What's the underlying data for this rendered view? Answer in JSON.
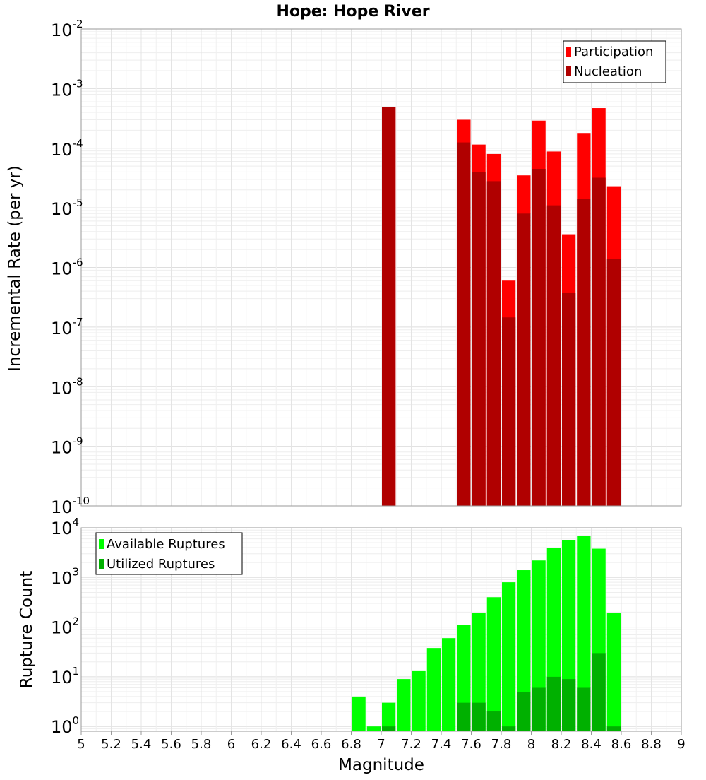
{
  "chart_data": [
    {
      "type": "bar",
      "title": "Hope: Hope River",
      "xlabel": "",
      "ylabel": "Incremental Rate (per yr)",
      "y_scale": "log",
      "ylim": [
        1e-10,
        0.01
      ],
      "xlim": [
        5,
        9
      ],
      "bar_width": 0.1,
      "y_tick_bases": [
        "10",
        "10",
        "10",
        "10",
        "10",
        "10",
        "10",
        "10",
        "10"
      ],
      "y_tick_exponents": [
        "-10",
        "-9",
        "-8",
        "-7",
        "-6",
        "-5",
        "-4",
        "-3",
        "-2"
      ],
      "legend_position": "top-right",
      "legend": [
        "Participation",
        "Nucleation"
      ],
      "colors": {
        "participation": "#ff0000",
        "nucleation": "#b00000"
      },
      "x": [
        7.05,
        7.55,
        7.65,
        7.75,
        7.85,
        7.95,
        8.05,
        8.15,
        8.25,
        8.35,
        8.45,
        8.55
      ],
      "series": [
        {
          "name": "Participation",
          "values": [
            0.00049,
            0.0003,
            0.000115,
            8e-05,
            6e-07,
            3.5e-05,
            0.00029,
            8.8e-05,
            3.6e-06,
            0.00018,
            0.00047,
            2.3e-05
          ]
        },
        {
          "name": "Nucleation",
          "values": [
            0.00049,
            0.000125,
            4e-05,
            2.8e-05,
            1.45e-07,
            8e-06,
            4.5e-05,
            1.1e-05,
            3.8e-07,
            1.4e-05,
            3.2e-05,
            1.4e-06
          ]
        }
      ]
    },
    {
      "type": "bar",
      "title": "",
      "xlabel": "Magnitude",
      "ylabel": "Rupture Count",
      "y_scale": "log",
      "ylim": [
        0.8,
        10000
      ],
      "xlim": [
        5,
        9
      ],
      "bar_width": 0.1,
      "y_tick_values": [
        1,
        10,
        100,
        1000,
        10000
      ],
      "y_tick_bases": [
        "10",
        "10",
        "10",
        "10",
        "10"
      ],
      "y_tick_exponents": [
        "0",
        "1",
        "2",
        "3",
        "4"
      ],
      "x_tick_labels": [
        "5",
        "5.2",
        "5.4",
        "5.6",
        "5.8",
        "6",
        "6.2",
        "6.4",
        "6.6",
        "6.8",
        "7",
        "7.2",
        "7.4",
        "7.6",
        "7.8",
        "8",
        "8.2",
        "8.4",
        "8.6",
        "8.8",
        "9"
      ],
      "legend_position": "top-left",
      "legend": [
        "Available Ruptures",
        "Utilized Ruptures"
      ],
      "colors": {
        "available": "#00ff00",
        "utilized": "#00b000"
      },
      "x": [
        6.85,
        6.95,
        7.05,
        7.15,
        7.25,
        7.35,
        7.45,
        7.55,
        7.65,
        7.75,
        7.85,
        7.95,
        8.05,
        8.15,
        8.25,
        8.35,
        8.45,
        8.55
      ],
      "series": [
        {
          "name": "Available Ruptures",
          "values": [
            4,
            1,
            3,
            9,
            13,
            38,
            60,
            110,
            190,
            400,
            800,
            1400,
            2200,
            3900,
            5600,
            6900,
            3800,
            190
          ]
        },
        {
          "name": "Utilized Ruptures",
          "values": [
            0,
            0,
            1,
            0,
            0,
            0,
            0,
            3,
            3,
            2,
            1,
            5,
            6,
            10,
            9,
            6,
            30,
            1
          ]
        }
      ]
    }
  ]
}
